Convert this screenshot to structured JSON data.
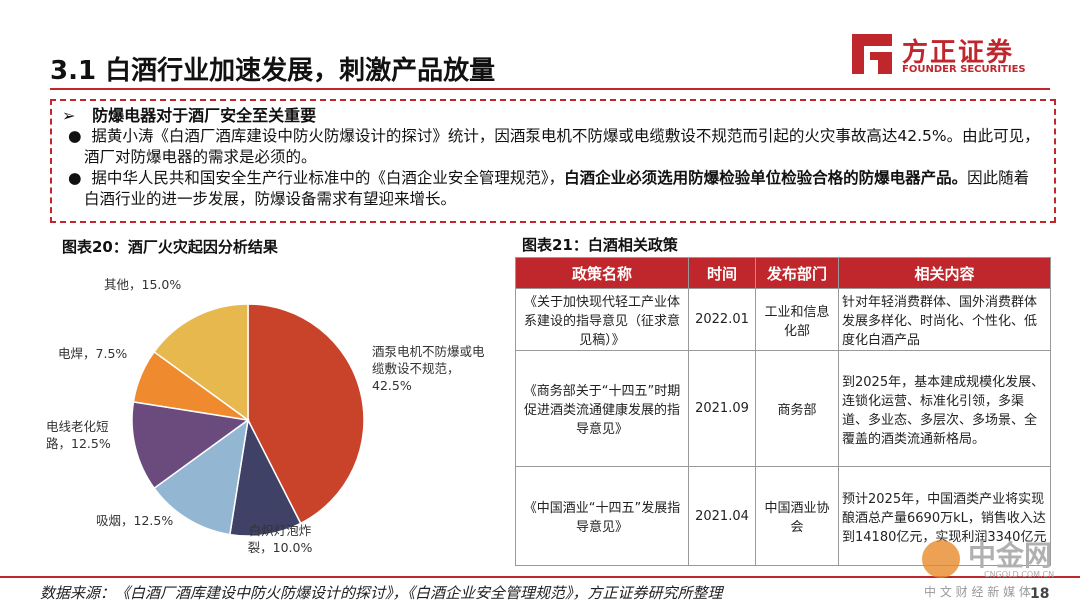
{
  "header": {
    "title": "3.1 白酒行业加速发展，刺激产品放量",
    "logo_name": "方正证券",
    "logo_sub": "FOUNDER SECURITIES"
  },
  "box": {
    "heading": "防爆电器对于酒厂安全至关重要",
    "bullets": [
      [
        "据黄小涛《白酒厂酒库建设中防火防爆设计的探讨》统计，因酒泵电机不防爆或电缆敷设不规范而引起的火灾事故高达42.5%。由此可见，酒厂对防爆电器的需求是必须的。"
      ],
      [
        "据中华人民共和国安全生产行业标准中的《白酒企业安全管理规范》，",
        "白酒企业必须选用防爆检验单位检验合格的防爆电器产品。",
        "因此随着白酒行业的进一步发展，防爆设备需求有望迎来增长。"
      ]
    ]
  },
  "chart_data": {
    "type": "pie",
    "title": "图表20：酒厂火灾起因分析结果",
    "categories": [
      "酒泵电机不防爆或电缆敷设不规范，",
      "白炽灯泡炸裂，",
      "吸烟，",
      "电线老化短路，",
      "电焊，",
      "其他，"
    ],
    "values": [
      42.5,
      10.0,
      12.5,
      12.5,
      7.5,
      15.0
    ],
    "value_labels": [
      "42.5%",
      "10.0%",
      "12.5%",
      "12.5%",
      "7.5%",
      "15.0%"
    ],
    "colors": [
      "#c9432b",
      "#3f4166",
      "#93b6d2",
      "#6b4b7e",
      "#ef8a2f",
      "#e6b84e"
    ]
  },
  "table": {
    "title": "图表21：白酒相关政策",
    "header": [
      "政策名称",
      "时间",
      "发布部门",
      "相关内容"
    ],
    "rows": [
      [
        "《关于加快现代轻工产业体系建设的指导意见（征求意见稿）》",
        "2022.01",
        "工业和信息化部",
        "针对年轻消费群体、国外消费群体发展多样化、时尚化、个性化、低度化白酒产品"
      ],
      [
        "《商务部关于“十四五”时期促进酒类流通健康发展的指导意见》",
        "2021.09",
        "商务部",
        "到2025年，基本建成规模化发展、连锁化运营、标准化引领，多渠道、多业态、多层次、多场景、全覆盖的酒类流通新格局。"
      ],
      [
        "《中国酒业“十四五”发展指导意见》",
        "2021.04",
        "中国酒业协会",
        "预计2025年，中国酒类产业将实现酿酒总产量6690万kL，销售收入达到14180亿元，实现利润3340亿元"
      ]
    ]
  },
  "footer": {
    "source": "数据来源：《白酒厂酒库建设中防火防爆设计的探讨》，《白酒企业安全管理规范》，方正证券研究所整理",
    "page": "18",
    "watermark": "中金网",
    "watermark_url": "CNGOLD.COM.CN",
    "watermark_sub": "中 文 财 经 新 媒 体"
  }
}
